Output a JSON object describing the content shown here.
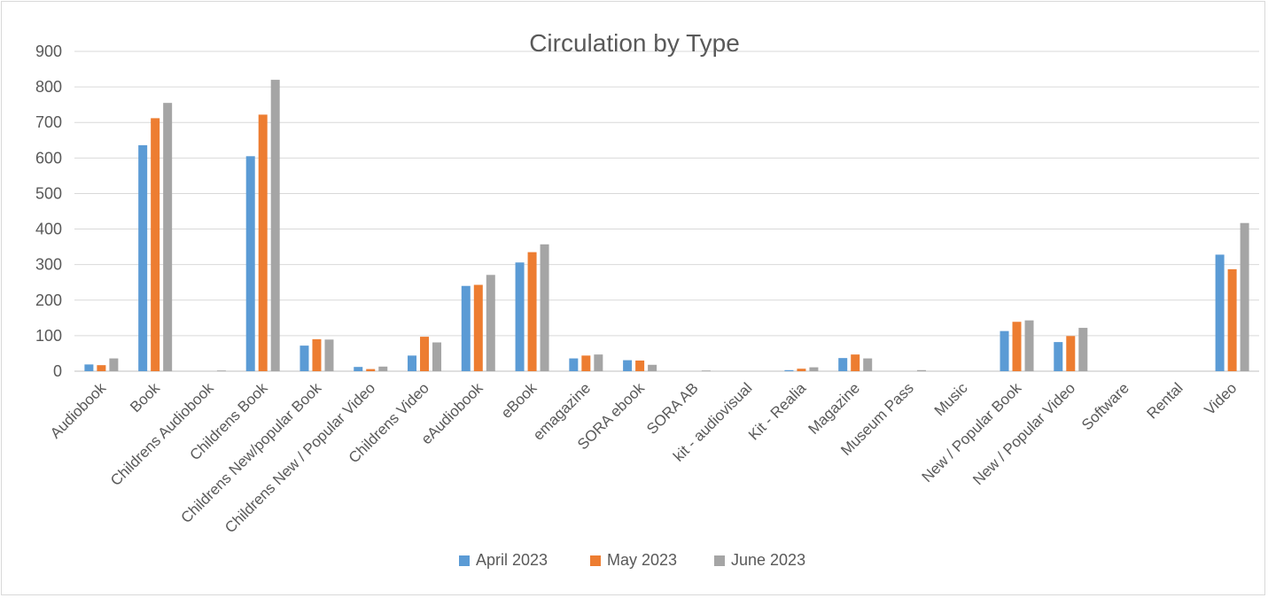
{
  "chart_data": {
    "type": "bar",
    "title": "Circulation by Type",
    "xlabel": "",
    "ylabel": "",
    "ylim": [
      0,
      900
    ],
    "yticks": [
      0,
      100,
      200,
      300,
      400,
      500,
      600,
      700,
      800,
      900
    ],
    "grid": true,
    "legend_position": "bottom",
    "categories": [
      "Audiobook",
      "Book",
      "Childrens Audiobook",
      "Childrens Book",
      "Childrens New/popular Book",
      "Childrens New / Popular Video",
      "Childrens Video",
      "eAudiobook",
      "eBook",
      "emagazine",
      "SORA ebook",
      "SORA AB",
      "kit - audiovisual",
      "Kit - Realia",
      "Magazine",
      "Museum Pass",
      "Music",
      "New / Popular Book",
      "New / Popular Video",
      "Software",
      "Rental",
      "Video"
    ],
    "series": [
      {
        "name": "April 2023",
        "color": "#5b9bd5",
        "values": [
          19,
          636,
          0,
          605,
          72,
          12,
          44,
          240,
          306,
          36,
          31,
          0,
          0,
          3,
          37,
          0,
          0,
          113,
          82,
          0,
          0,
          328
        ]
      },
      {
        "name": "May 2023",
        "color": "#ed7d31",
        "values": [
          17,
          712,
          0,
          722,
          90,
          6,
          97,
          243,
          335,
          44,
          30,
          0,
          0,
          7,
          47,
          0,
          0,
          139,
          99,
          0,
          0,
          287
        ]
      },
      {
        "name": "June 2023",
        "color": "#a5a5a5",
        "values": [
          36,
          755,
          2,
          820,
          89,
          13,
          81,
          271,
          357,
          47,
          18,
          2,
          0,
          11,
          36,
          3,
          0,
          143,
          122,
          0,
          0,
          417
        ]
      }
    ]
  }
}
